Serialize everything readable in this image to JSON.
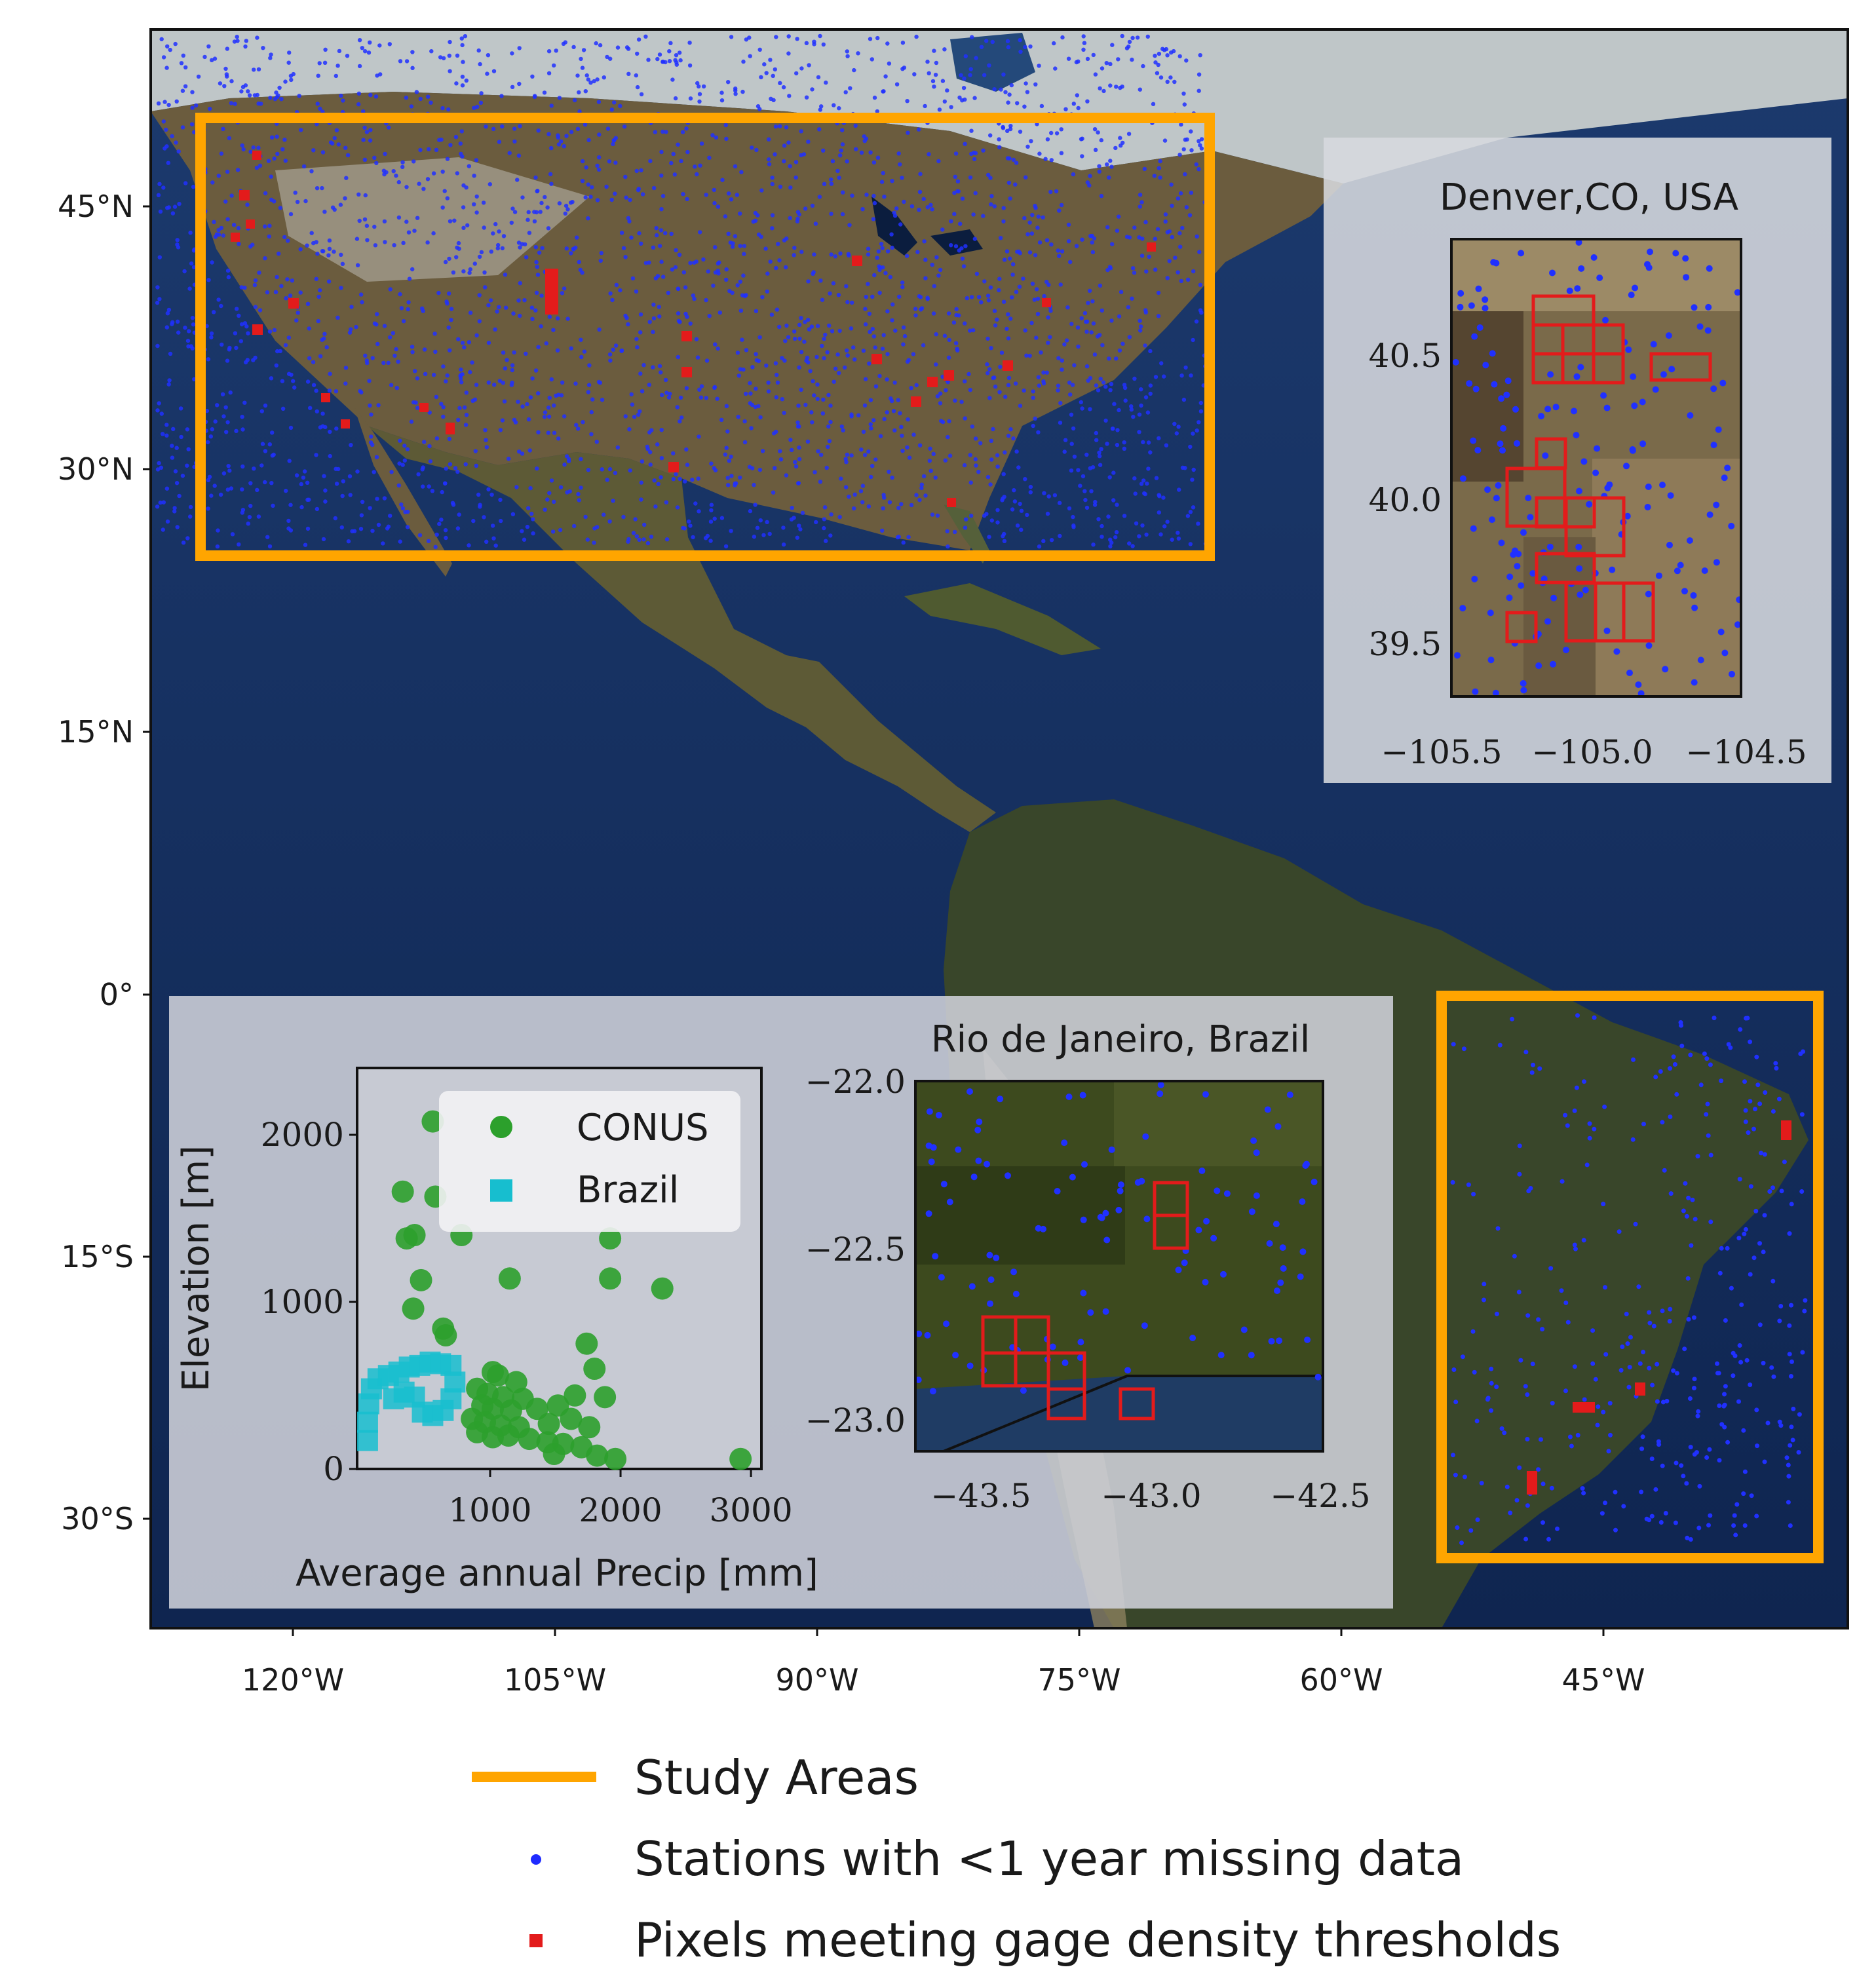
{
  "map": {
    "lat_ticks": [
      "45°N",
      "30°N",
      "15°N",
      "0°",
      "15°S",
      "30°S"
    ],
    "lon_ticks": [
      "120°W",
      "105°W",
      "90°W",
      "75°W",
      "60°W",
      "45°W"
    ]
  },
  "legend": {
    "items": [
      {
        "label": "Study Areas",
        "color": "#ffa500",
        "marker": "line"
      },
      {
        "label": "Stations with <1 year missing data",
        "color": "#1f2bff",
        "marker": "dot"
      },
      {
        "label": "Pixels meeting gage density thresholds",
        "color": "#e31b1b",
        "marker": "square"
      }
    ]
  },
  "insets": {
    "denver": {
      "title": "Denver,CO, USA",
      "y_ticks": [
        "40.5",
        "40.0",
        "39.5"
      ],
      "x_ticks": [
        "−105.5",
        "−105.0",
        "−104.5"
      ]
    },
    "rio": {
      "title": "Rio de Janeiro, Brazil",
      "y_ticks": [
        "−22.0",
        "−22.5",
        "−23.0"
      ],
      "x_ticks": [
        "−43.5",
        "−43.0",
        "−42.5"
      ]
    }
  },
  "chart_data": {
    "type": "scatter",
    "xlabel": "Average annual Precip [mm]",
    "ylabel": "Elevation [m]",
    "xticks": [
      "1000",
      "2000",
      "3000"
    ],
    "yticks": [
      "0",
      "1000",
      "2000"
    ],
    "xlim": [
      -20,
      3080
    ],
    "ylim": [
      0,
      2400
    ],
    "series": [
      {
        "name": "CONUS",
        "color": "#2ca02c",
        "marker": "circle",
        "points": [
          [
            560,
            2080
          ],
          [
            330,
            1660
          ],
          [
            580,
            1630
          ],
          [
            420,
            1400
          ],
          [
            780,
            1400
          ],
          [
            360,
            1380
          ],
          [
            1920,
            1380
          ],
          [
            470,
            1130
          ],
          [
            1150,
            1140
          ],
          [
            1920,
            1140
          ],
          [
            2320,
            1080
          ],
          [
            410,
            960
          ],
          [
            640,
            840
          ],
          [
            660,
            800
          ],
          [
            1740,
            750
          ],
          [
            1800,
            600
          ],
          [
            1020,
            580
          ],
          [
            1060,
            560
          ],
          [
            1200,
            520
          ],
          [
            900,
            480
          ],
          [
            980,
            450
          ],
          [
            1100,
            430
          ],
          [
            1250,
            420
          ],
          [
            1650,
            440
          ],
          [
            1880,
            430
          ],
          [
            940,
            380
          ],
          [
            1020,
            360
          ],
          [
            1160,
            350
          ],
          [
            1360,
            360
          ],
          [
            1520,
            380
          ],
          [
            860,
            300
          ],
          [
            960,
            280
          ],
          [
            1080,
            260
          ],
          [
            1220,
            250
          ],
          [
            1450,
            270
          ],
          [
            1620,
            300
          ],
          [
            1760,
            250
          ],
          [
            900,
            220
          ],
          [
            1020,
            190
          ],
          [
            1140,
            200
          ],
          [
            1300,
            180
          ],
          [
            1440,
            160
          ],
          [
            1560,
            150
          ],
          [
            1700,
            130
          ],
          [
            1820,
            80
          ],
          [
            1960,
            60
          ],
          [
            1490,
            90
          ],
          [
            2920,
            60
          ]
        ]
      },
      {
        "name": "Brazil",
        "color": "#17becf",
        "marker": "square",
        "points": [
          [
            60,
            170
          ],
          [
            60,
            280
          ],
          [
            70,
            390
          ],
          [
            90,
            480
          ],
          [
            140,
            540
          ],
          [
            220,
            560
          ],
          [
            300,
            580
          ],
          [
            380,
            610
          ],
          [
            460,
            620
          ],
          [
            540,
            640
          ],
          [
            620,
            630
          ],
          [
            700,
            620
          ],
          [
            730,
            520
          ],
          [
            700,
            420
          ],
          [
            640,
            350
          ],
          [
            560,
            320
          ],
          [
            480,
            340
          ],
          [
            420,
            430
          ],
          [
            340,
            460
          ],
          [
            260,
            420
          ]
        ]
      }
    ]
  }
}
